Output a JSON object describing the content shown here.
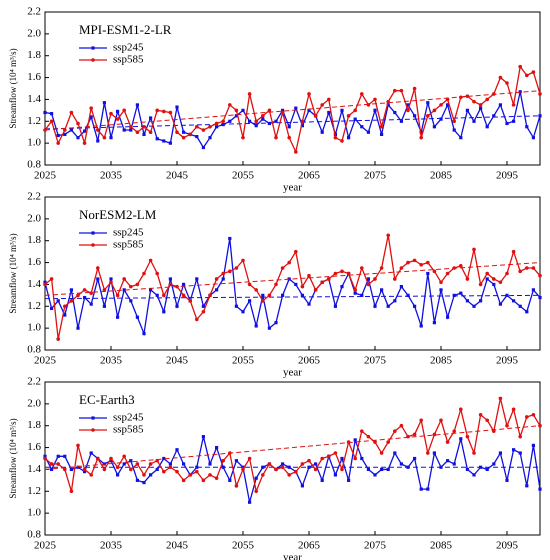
{
  "chart_data": [
    {
      "type": "line",
      "title": "MPI-ESM1-2-LR",
      "xlabel": "year",
      "ylabel": "Streamflow (10⁴ m³/s)",
      "x": [
        2025,
        2026,
        2027,
        2028,
        2029,
        2030,
        2031,
        2032,
        2033,
        2034,
        2035,
        2036,
        2037,
        2038,
        2039,
        2040,
        2041,
        2042,
        2043,
        2044,
        2045,
        2046,
        2047,
        2048,
        2049,
        2050,
        2051,
        2052,
        2053,
        2054,
        2055,
        2056,
        2057,
        2058,
        2059,
        2060,
        2061,
        2062,
        2063,
        2064,
        2065,
        2066,
        2067,
        2068,
        2069,
        2070,
        2071,
        2072,
        2073,
        2074,
        2075,
        2076,
        2077,
        2078,
        2079,
        2080,
        2081,
        2082,
        2083,
        2084,
        2085,
        2086,
        2087,
        2088,
        2089,
        2090,
        2091,
        2092,
        2093,
        2094,
        2095,
        2096,
        2097,
        2098,
        2099,
        2100
      ],
      "xlim": [
        2025,
        2100
      ],
      "xticks": [
        2025,
        2035,
        2045,
        2055,
        2065,
        2075,
        2085,
        2095
      ],
      "ylim": [
        0.8,
        2.2
      ],
      "yticks": [
        0.8,
        {
          "value": 1.0,
          "label": "1.0"
        },
        1.2,
        1.4,
        1.6,
        1.8,
        {
          "value": 2.0,
          "label": "2.0"
        },
        2.2
      ],
      "legend": "upper left",
      "series": [
        {
          "name": "ssp245",
          "color": "#1010e0",
          "marker": "square",
          "trend": [
            1.13,
            1.25
          ],
          "values": [
            1.28,
            1.27,
            1.07,
            1.08,
            1.12,
            1.05,
            1.11,
            1.24,
            1.02,
            1.37,
            1.05,
            1.29,
            1.12,
            1.12,
            1.35,
            1.08,
            1.23,
            1.04,
            1.02,
            1.0,
            1.33,
            1.1,
            1.08,
            1.06,
            0.96,
            1.05,
            1.15,
            1.17,
            1.2,
            1.25,
            1.3,
            1.2,
            1.16,
            1.22,
            1.18,
            1.2,
            1.3,
            1.15,
            1.32,
            1.16,
            1.3,
            1.25,
            1.1,
            1.28,
            1.08,
            1.3,
            1.05,
            1.22,
            1.15,
            1.1,
            1.3,
            1.08,
            1.35,
            1.28,
            1.2,
            1.35,
            1.25,
            1.1,
            1.37,
            1.15,
            1.22,
            1.35,
            1.12,
            1.05,
            1.3,
            1.2,
            1.32,
            1.15,
            1.25,
            1.35,
            1.18,
            1.2,
            1.47,
            1.15,
            1.05,
            1.25
          ]
        },
        {
          "name": "ssp585",
          "color": "#e01010",
          "marker": "circle",
          "trend": [
            1.12,
            1.48
          ],
          "values": [
            1.12,
            1.2,
            1.0,
            1.12,
            1.28,
            1.18,
            1.0,
            1.32,
            1.12,
            1.05,
            1.27,
            1.22,
            1.3,
            1.15,
            1.1,
            1.15,
            1.1,
            1.3,
            1.29,
            1.28,
            1.1,
            1.05,
            1.08,
            1.15,
            1.12,
            1.15,
            1.18,
            1.2,
            1.35,
            1.3,
            1.05,
            1.45,
            1.2,
            1.25,
            1.3,
            1.05,
            1.28,
            1.05,
            0.92,
            1.2,
            1.45,
            1.25,
            1.35,
            1.4,
            1.05,
            1.02,
            1.25,
            1.3,
            1.45,
            1.35,
            1.4,
            1.15,
            1.38,
            1.48,
            1.48,
            1.3,
            1.5,
            1.05,
            1.25,
            1.3,
            1.35,
            1.4,
            1.2,
            1.42,
            1.43,
            1.38,
            1.35,
            1.4,
            1.45,
            1.6,
            1.55,
            1.35,
            1.7,
            1.62,
            1.65,
            1.45
          ]
        }
      ]
    },
    {
      "type": "line",
      "title": "NorESM2-LM",
      "xlabel": "year",
      "ylabel": "Streamflow (10⁴ m³/s)",
      "x": [
        2025,
        2026,
        2027,
        2028,
        2029,
        2030,
        2031,
        2032,
        2033,
        2034,
        2035,
        2036,
        2037,
        2038,
        2039,
        2040,
        2041,
        2042,
        2043,
        2044,
        2045,
        2046,
        2047,
        2048,
        2049,
        2050,
        2051,
        2052,
        2053,
        2054,
        2055,
        2056,
        2057,
        2058,
        2059,
        2060,
        2061,
        2062,
        2063,
        2064,
        2065,
        2066,
        2067,
        2068,
        2069,
        2070,
        2071,
        2072,
        2073,
        2074,
        2075,
        2076,
        2077,
        2078,
        2079,
        2080,
        2081,
        2082,
        2083,
        2084,
        2085,
        2086,
        2087,
        2088,
        2089,
        2090,
        2091,
        2092,
        2093,
        2094,
        2095,
        2096,
        2097,
        2098,
        2099,
        2100
      ],
      "xlim": [
        2025,
        2100
      ],
      "xticks": [
        2025,
        2035,
        2045,
        2055,
        2065,
        2075,
        2085,
        2095
      ],
      "ylim": [
        0.8,
        2.2
      ],
      "yticks": [
        0.8,
        {
          "value": 1.0,
          "label": "1.0"
        },
        1.2,
        1.4,
        1.6,
        1.8,
        {
          "value": 2.0,
          "label": "2.0"
        },
        2.2
      ],
      "legend": "upper left",
      "series": [
        {
          "name": "ssp245",
          "color": "#1010e0",
          "marker": "square",
          "trend": [
            1.27,
            1.3
          ],
          "values": [
            1.42,
            1.18,
            1.25,
            1.12,
            1.35,
            1.0,
            1.28,
            1.22,
            1.45,
            1.2,
            1.45,
            1.1,
            1.35,
            1.25,
            1.1,
            0.95,
            1.35,
            1.3,
            1.15,
            1.45,
            1.2,
            1.4,
            1.25,
            1.45,
            1.2,
            1.3,
            1.35,
            1.45,
            1.82,
            1.2,
            1.15,
            1.25,
            1.02,
            1.3,
            1.0,
            1.05,
            1.3,
            1.45,
            1.4,
            1.3,
            1.22,
            1.35,
            1.42,
            1.45,
            1.2,
            1.38,
            1.5,
            1.32,
            1.3,
            1.45,
            1.2,
            1.35,
            1.2,
            1.25,
            1.38,
            1.3,
            1.2,
            1.02,
            1.5,
            1.05,
            1.35,
            1.1,
            1.3,
            1.32,
            1.25,
            1.2,
            1.25,
            1.45,
            1.4,
            1.22,
            1.3,
            1.25,
            1.2,
            1.15,
            1.35,
            1.28
          ]
        },
        {
          "name": "ssp585",
          "color": "#e01010",
          "marker": "circle",
          "trend": [
            1.3,
            1.6
          ],
          "values": [
            1.4,
            1.45,
            0.9,
            1.2,
            1.25,
            1.3,
            1.35,
            1.32,
            1.55,
            1.35,
            1.42,
            1.3,
            1.45,
            1.38,
            1.4,
            1.5,
            1.62,
            1.5,
            1.3,
            1.4,
            1.38,
            1.3,
            1.25,
            1.08,
            1.15,
            1.3,
            1.45,
            1.5,
            1.52,
            1.55,
            1.62,
            1.4,
            1.35,
            1.25,
            1.3,
            1.4,
            1.55,
            1.6,
            1.7,
            1.38,
            1.48,
            1.35,
            1.42,
            1.45,
            1.5,
            1.52,
            1.5,
            1.35,
            1.55,
            1.4,
            1.45,
            1.55,
            1.85,
            1.45,
            1.55,
            1.6,
            1.62,
            1.58,
            1.6,
            1.52,
            1.42,
            1.5,
            1.55,
            1.57,
            1.45,
            1.72,
            1.4,
            1.5,
            1.45,
            1.42,
            1.5,
            1.7,
            1.52,
            1.55,
            1.55,
            1.48
          ]
        }
      ]
    },
    {
      "type": "line",
      "title": "EC-Earth3",
      "xlabel": "year",
      "ylabel": "Streamflow (10⁴ m³/s)",
      "x": [
        2025,
        2026,
        2027,
        2028,
        2029,
        2030,
        2031,
        2032,
        2033,
        2034,
        2035,
        2036,
        2037,
        2038,
        2039,
        2040,
        2041,
        2042,
        2043,
        2044,
        2045,
        2046,
        2047,
        2048,
        2049,
        2050,
        2051,
        2052,
        2053,
        2054,
        2055,
        2056,
        2057,
        2058,
        2059,
        2060,
        2061,
        2062,
        2063,
        2064,
        2065,
        2066,
        2067,
        2068,
        2069,
        2070,
        2071,
        2072,
        2073,
        2074,
        2075,
        2076,
        2077,
        2078,
        2079,
        2080,
        2081,
        2082,
        2083,
        2084,
        2085,
        2086,
        2087,
        2088,
        2089,
        2090,
        2091,
        2092,
        2093,
        2094,
        2095,
        2096,
        2097,
        2098,
        2099,
        2100
      ],
      "xlim": [
        2025,
        2100
      ],
      "xticks": [
        2025,
        2035,
        2045,
        2055,
        2065,
        2075,
        2085,
        2095
      ],
      "ylim": [
        0.8,
        2.2
      ],
      "yticks": [
        0.8,
        {
          "value": 1.0,
          "label": "1.0"
        },
        1.2,
        1.4,
        1.6,
        1.8,
        {
          "value": 2.0,
          "label": "2.0"
        },
        2.2
      ],
      "legend": "upper left",
      "series": [
        {
          "name": "ssp245",
          "color": "#1010e0",
          "marker": "square",
          "trend": [
            1.42,
            1.42
          ],
          "values": [
            1.52,
            1.4,
            1.52,
            1.52,
            1.4,
            1.42,
            1.38,
            1.55,
            1.5,
            1.45,
            1.48,
            1.35,
            1.45,
            1.48,
            1.3,
            1.28,
            1.35,
            1.4,
            1.5,
            1.45,
            1.58,
            1.45,
            1.35,
            1.42,
            1.7,
            1.45,
            1.6,
            1.42,
            1.3,
            1.48,
            1.42,
            1.1,
            1.32,
            1.42,
            1.45,
            1.4,
            1.45,
            1.42,
            1.38,
            1.25,
            1.42,
            1.45,
            1.3,
            1.52,
            1.35,
            1.5,
            1.3,
            1.67,
            1.5,
            1.4,
            1.35,
            1.4,
            1.4,
            1.55,
            1.45,
            1.42,
            1.5,
            1.22,
            1.22,
            1.55,
            1.42,
            1.48,
            1.45,
            1.68,
            1.4,
            1.35,
            1.42,
            1.4,
            1.45,
            1.55,
            1.3,
            1.58,
            1.55,
            1.25,
            1.62,
            1.22
          ]
        },
        {
          "name": "ssp585",
          "color": "#e01010",
          "marker": "circle",
          "trend": [
            1.4,
            1.8
          ],
          "values": [
            1.5,
            1.45,
            1.45,
            1.4,
            1.2,
            1.62,
            1.4,
            1.35,
            1.5,
            1.4,
            1.5,
            1.42,
            1.52,
            1.4,
            1.45,
            1.35,
            1.45,
            1.48,
            1.38,
            1.42,
            1.38,
            1.3,
            1.35,
            1.38,
            1.3,
            1.35,
            1.32,
            1.48,
            1.55,
            1.25,
            1.4,
            1.5,
            1.2,
            1.35,
            1.45,
            1.4,
            1.42,
            1.35,
            1.38,
            1.45,
            1.48,
            1.4,
            1.5,
            1.52,
            1.55,
            1.4,
            1.65,
            1.5,
            1.75,
            1.7,
            1.65,
            1.55,
            1.65,
            1.75,
            1.8,
            1.7,
            1.72,
            1.85,
            1.55,
            1.72,
            1.85,
            1.65,
            1.75,
            1.95,
            1.7,
            1.55,
            1.9,
            1.85,
            1.75,
            2.05,
            1.8,
            1.95,
            1.7,
            1.88,
            1.9,
            1.8
          ]
        }
      ]
    }
  ]
}
